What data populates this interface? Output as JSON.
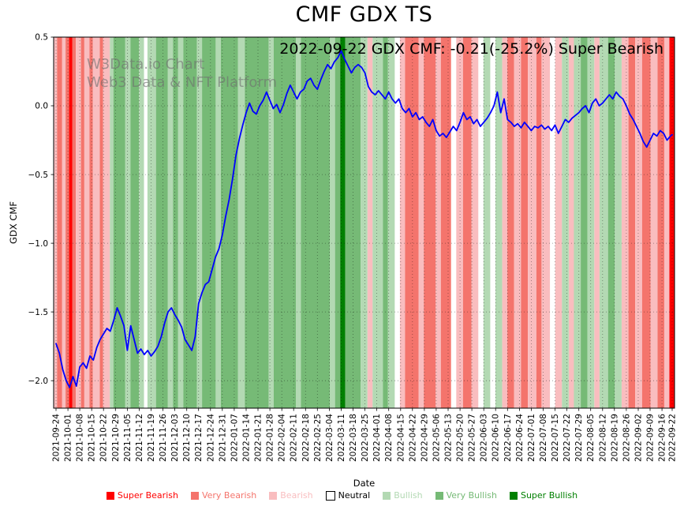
{
  "figure": {
    "title": "CMF GDX TS",
    "annotation": "2022-09-22 GDX CMF: -0.21(-25.2%) Super Bearish",
    "watermark": [
      "W3Data.io Chart",
      "Web3 Data & NFT Platform"
    ]
  },
  "chart_data": {
    "type": "line",
    "title": "CMF GDX TS",
    "xlabel": "Date",
    "ylabel": "GDX CMF",
    "ylim": [
      -2.2,
      0.5
    ],
    "yticks": [
      0.5,
      0.0,
      -0.5,
      -1.0,
      -1.5,
      -2.0
    ],
    "ytick_labels": [
      "0.5",
      "0.0",
      "−0.5",
      "−1.0",
      "−1.5",
      "−2.0"
    ],
    "grid": "dotted",
    "legend_position": "bottom",
    "x_total_days": 363,
    "sample_step_days": 2,
    "x_tick_days": [
      0,
      7,
      14,
      21,
      28,
      35,
      42,
      49,
      56,
      63,
      70,
      77,
      84,
      91,
      98,
      105,
      112,
      119,
      126,
      133,
      140,
      147,
      154,
      161,
      168,
      175,
      182,
      189,
      196,
      203,
      210,
      217,
      224,
      231,
      238,
      245,
      252,
      259,
      266,
      273,
      280,
      287,
      294,
      301,
      308,
      315,
      322,
      329,
      336,
      343,
      350,
      357,
      363
    ],
    "x_tick_labels": [
      "2021-09-24",
      "2021-10-01",
      "2021-10-08",
      "2021-10-15",
      "2021-10-22",
      "2021-10-29",
      "2021-11-05",
      "2021-11-12",
      "2021-11-19",
      "2021-11-26",
      "2021-12-03",
      "2021-12-10",
      "2021-12-17",
      "2021-12-24",
      "2021-12-31",
      "2022-01-07",
      "2022-01-14",
      "2022-01-21",
      "2022-01-28",
      "2022-02-04",
      "2022-02-11",
      "2022-02-18",
      "2022-02-25",
      "2022-03-04",
      "2022-03-11",
      "2022-03-18",
      "2022-03-25",
      "2022-04-01",
      "2022-04-08",
      "2022-04-15",
      "2022-04-22",
      "2022-04-29",
      "2022-05-06",
      "2022-05-13",
      "2022-05-20",
      "2022-05-27",
      "2022-06-03",
      "2022-06-10",
      "2022-06-17",
      "2022-06-24",
      "2022-07-01",
      "2022-07-08",
      "2022-07-15",
      "2022-07-22",
      "2022-07-29",
      "2022-08-05",
      "2022-08-12",
      "2022-08-19",
      "2022-08-26",
      "2022-09-02",
      "2022-09-09",
      "2022-09-16",
      "2022-09-22"
    ],
    "series": [
      {
        "name": "GDX CMF",
        "color": "#0000ff",
        "y": [
          -1.73,
          -1.8,
          -1.92,
          -2.0,
          -2.05,
          -1.97,
          -2.04,
          -1.9,
          -1.87,
          -1.91,
          -1.82,
          -1.85,
          -1.76,
          -1.7,
          -1.66,
          -1.62,
          -1.64,
          -1.56,
          -1.47,
          -1.53,
          -1.6,
          -1.78,
          -1.6,
          -1.7,
          -1.8,
          -1.77,
          -1.81,
          -1.78,
          -1.82,
          -1.79,
          -1.75,
          -1.68,
          -1.58,
          -1.5,
          -1.47,
          -1.52,
          -1.56,
          -1.61,
          -1.7,
          -1.74,
          -1.78,
          -1.68,
          -1.44,
          -1.36,
          -1.3,
          -1.28,
          -1.19,
          -1.1,
          -1.04,
          -0.94,
          -0.8,
          -0.68,
          -0.53,
          -0.36,
          -0.24,
          -0.14,
          -0.05,
          0.02,
          -0.04,
          -0.06,
          0.0,
          0.04,
          0.1,
          0.04,
          -0.02,
          0.01,
          -0.05,
          0.01,
          0.09,
          0.15,
          0.1,
          0.05,
          0.1,
          0.12,
          0.18,
          0.2,
          0.15,
          0.12,
          0.19,
          0.25,
          0.3,
          0.27,
          0.32,
          0.35,
          0.4,
          0.34,
          0.29,
          0.24,
          0.28,
          0.3,
          0.28,
          0.24,
          0.14,
          0.1,
          0.08,
          0.11,
          0.08,
          0.05,
          0.1,
          0.05,
          0.02,
          0.05,
          -0.02,
          -0.05,
          -0.02,
          -0.08,
          -0.05,
          -0.1,
          -0.08,
          -0.12,
          -0.15,
          -0.1,
          -0.18,
          -0.22,
          -0.2,
          -0.23,
          -0.19,
          -0.15,
          -0.18,
          -0.12,
          -0.05,
          -0.1,
          -0.08,
          -0.13,
          -0.1,
          -0.15,
          -0.12,
          -0.09,
          -0.05,
          0.0,
          0.1,
          -0.05,
          0.05,
          -0.1,
          -0.12,
          -0.15,
          -0.13,
          -0.16,
          -0.12,
          -0.15,
          -0.18,
          -0.15,
          -0.16,
          -0.14,
          -0.17,
          -0.15,
          -0.18,
          -0.14,
          -0.2,
          -0.15,
          -0.1,
          -0.12,
          -0.09,
          -0.07,
          -0.05,
          -0.02,
          0.0,
          -0.05,
          0.02,
          0.05,
          0.0,
          0.02,
          0.05,
          0.08,
          0.05,
          0.1,
          0.07,
          0.05,
          0.0,
          -0.06,
          -0.1,
          -0.15,
          -0.2,
          -0.26,
          -0.3,
          -0.25,
          -0.2,
          -0.22,
          -0.18,
          -0.2,
          -0.25,
          -0.22,
          -0.21
        ]
      }
    ],
    "sentiment_colors": {
      "super_bearish": "#ff0000",
      "very_bearish": "#f4746c",
      "bearish": "#f9bdbf",
      "neutral": "#ffffff",
      "bullish": "#b3d9b3",
      "very_bullish": "#76ba76",
      "super_bullish": "#008000"
    },
    "bands": [
      {
        "start": 0,
        "end": 2,
        "level": "bearish"
      },
      {
        "start": 2,
        "end": 5,
        "level": "very_bearish"
      },
      {
        "start": 5,
        "end": 7,
        "level": "bearish"
      },
      {
        "start": 7,
        "end": 9,
        "level": "very_bearish"
      },
      {
        "start": 9,
        "end": 11,
        "level": "super_bearish"
      },
      {
        "start": 11,
        "end": 13,
        "level": "very_bearish"
      },
      {
        "start": 13,
        "end": 16,
        "level": "bearish"
      },
      {
        "start": 16,
        "end": 18,
        "level": "very_bearish"
      },
      {
        "start": 18,
        "end": 21,
        "level": "bearish"
      },
      {
        "start": 21,
        "end": 23,
        "level": "very_bearish"
      },
      {
        "start": 23,
        "end": 27,
        "level": "bearish"
      },
      {
        "start": 27,
        "end": 29,
        "level": "very_bearish"
      },
      {
        "start": 29,
        "end": 33,
        "level": "bearish"
      },
      {
        "start": 33,
        "end": 35,
        "level": "bullish"
      },
      {
        "start": 35,
        "end": 42,
        "level": "very_bullish"
      },
      {
        "start": 42,
        "end": 45,
        "level": "bullish"
      },
      {
        "start": 45,
        "end": 50,
        "level": "very_bullish"
      },
      {
        "start": 50,
        "end": 53,
        "level": "bullish"
      },
      {
        "start": 53,
        "end": 55,
        "level": "neutral"
      },
      {
        "start": 55,
        "end": 60,
        "level": "bullish"
      },
      {
        "start": 60,
        "end": 67,
        "level": "very_bullish"
      },
      {
        "start": 67,
        "end": 70,
        "level": "bullish"
      },
      {
        "start": 70,
        "end": 73,
        "level": "very_bullish"
      },
      {
        "start": 73,
        "end": 76,
        "level": "bullish"
      },
      {
        "start": 76,
        "end": 84,
        "level": "very_bullish"
      },
      {
        "start": 84,
        "end": 87,
        "level": "bullish"
      },
      {
        "start": 87,
        "end": 95,
        "level": "very_bullish"
      },
      {
        "start": 95,
        "end": 98,
        "level": "bullish"
      },
      {
        "start": 98,
        "end": 108,
        "level": "very_bullish"
      },
      {
        "start": 108,
        "end": 112,
        "level": "bullish"
      },
      {
        "start": 112,
        "end": 126,
        "level": "very_bullish"
      },
      {
        "start": 126,
        "end": 129,
        "level": "bullish"
      },
      {
        "start": 129,
        "end": 142,
        "level": "very_bullish"
      },
      {
        "start": 142,
        "end": 145,
        "level": "bullish"
      },
      {
        "start": 145,
        "end": 162,
        "level": "very_bullish"
      },
      {
        "start": 162,
        "end": 165,
        "level": "bullish"
      },
      {
        "start": 165,
        "end": 168,
        "level": "very_bullish"
      },
      {
        "start": 168,
        "end": 171,
        "level": "super_bullish"
      },
      {
        "start": 171,
        "end": 180,
        "level": "very_bullish"
      },
      {
        "start": 180,
        "end": 184,
        "level": "bullish"
      },
      {
        "start": 184,
        "end": 187,
        "level": "bearish"
      },
      {
        "start": 187,
        "end": 193,
        "level": "bullish"
      },
      {
        "start": 193,
        "end": 196,
        "level": "very_bullish"
      },
      {
        "start": 196,
        "end": 200,
        "level": "bullish"
      },
      {
        "start": 200,
        "end": 203,
        "level": "neutral"
      },
      {
        "start": 203,
        "end": 206,
        "level": "bearish"
      },
      {
        "start": 206,
        "end": 214,
        "level": "very_bearish"
      },
      {
        "start": 214,
        "end": 217,
        "level": "bearish"
      },
      {
        "start": 217,
        "end": 224,
        "level": "very_bearish"
      },
      {
        "start": 224,
        "end": 227,
        "level": "bearish"
      },
      {
        "start": 227,
        "end": 233,
        "level": "very_bearish"
      },
      {
        "start": 233,
        "end": 236,
        "level": "neutral"
      },
      {
        "start": 236,
        "end": 240,
        "level": "bearish"
      },
      {
        "start": 240,
        "end": 245,
        "level": "very_bearish"
      },
      {
        "start": 245,
        "end": 249,
        "level": "bearish"
      },
      {
        "start": 249,
        "end": 252,
        "level": "neutral"
      },
      {
        "start": 252,
        "end": 256,
        "level": "bullish"
      },
      {
        "start": 256,
        "end": 259,
        "level": "neutral"
      },
      {
        "start": 259,
        "end": 263,
        "level": "bullish"
      },
      {
        "start": 263,
        "end": 266,
        "level": "bearish"
      },
      {
        "start": 266,
        "end": 270,
        "level": "very_bearish"
      },
      {
        "start": 270,
        "end": 274,
        "level": "bearish"
      },
      {
        "start": 274,
        "end": 278,
        "level": "very_bearish"
      },
      {
        "start": 278,
        "end": 283,
        "level": "bearish"
      },
      {
        "start": 283,
        "end": 286,
        "level": "very_bearish"
      },
      {
        "start": 286,
        "end": 291,
        "level": "bearish"
      },
      {
        "start": 291,
        "end": 294,
        "level": "neutral"
      },
      {
        "start": 294,
        "end": 298,
        "level": "bearish"
      },
      {
        "start": 298,
        "end": 302,
        "level": "bullish"
      },
      {
        "start": 302,
        "end": 305,
        "level": "bearish"
      },
      {
        "start": 305,
        "end": 309,
        "level": "bullish"
      },
      {
        "start": 309,
        "end": 313,
        "level": "very_bullish"
      },
      {
        "start": 313,
        "end": 317,
        "level": "bullish"
      },
      {
        "start": 317,
        "end": 320,
        "level": "bearish"
      },
      {
        "start": 320,
        "end": 325,
        "level": "bullish"
      },
      {
        "start": 325,
        "end": 329,
        "level": "very_bullish"
      },
      {
        "start": 329,
        "end": 333,
        "level": "bullish"
      },
      {
        "start": 333,
        "end": 337,
        "level": "bearish"
      },
      {
        "start": 337,
        "end": 341,
        "level": "very_bearish"
      },
      {
        "start": 341,
        "end": 345,
        "level": "bearish"
      },
      {
        "start": 345,
        "end": 350,
        "level": "very_bearish"
      },
      {
        "start": 350,
        "end": 354,
        "level": "bearish"
      },
      {
        "start": 354,
        "end": 358,
        "level": "very_bearish"
      },
      {
        "start": 358,
        "end": 361,
        "level": "bearish"
      },
      {
        "start": 361,
        "end": 364,
        "level": "super_bearish"
      }
    ],
    "legend": [
      {
        "label": "Super Bearish",
        "level": "super_bearish"
      },
      {
        "label": "Very Bearish",
        "level": "very_bearish"
      },
      {
        "label": "Bearish",
        "level": "bearish"
      },
      {
        "label": "Neutral",
        "level": "neutral"
      },
      {
        "label": "Bullish",
        "level": "bullish"
      },
      {
        "label": "Very Bullish",
        "level": "very_bullish"
      },
      {
        "label": "Super Bullish",
        "level": "super_bullish"
      }
    ]
  }
}
